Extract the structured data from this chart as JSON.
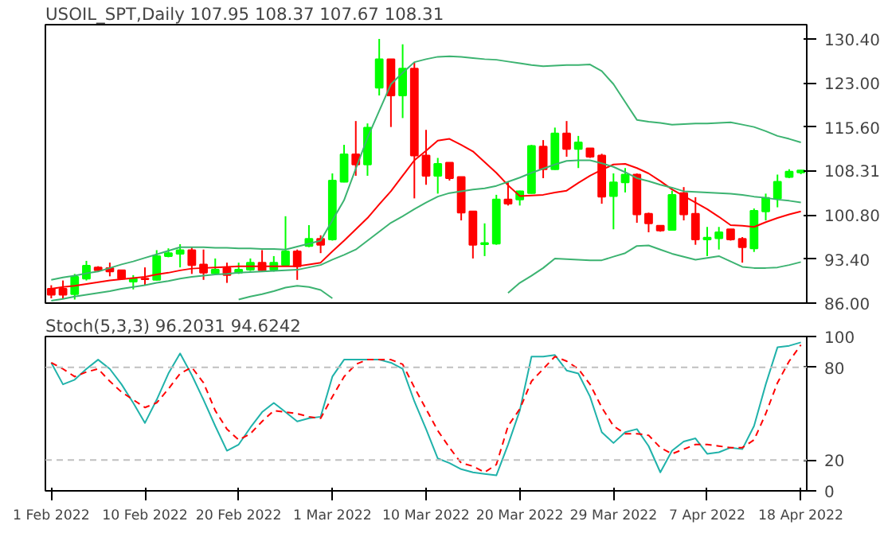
{
  "chart_data": [
    {
      "type": "candlestick",
      "title": "USOIL_SPT,Daily 107.95 108.37 107.67 108.31",
      "categories": [
        null,
        null,
        null,
        null,
        null,
        null,
        null,
        null,
        null,
        null,
        null,
        null,
        null,
        null,
        null,
        null,
        null,
        null,
        null,
        null,
        null,
        null,
        null,
        null,
        null,
        null,
        null,
        null,
        null,
        null,
        null,
        null,
        null,
        null,
        null,
        null,
        null,
        null,
        null,
        null,
        null,
        null,
        null,
        null,
        null,
        null,
        null,
        null,
        null,
        null,
        null,
        null,
        null,
        null,
        null,
        null,
        null,
        null,
        null,
        null,
        null,
        null,
        null,
        null,
        null
      ],
      "ohlc": [
        [
          88.4,
          89.0,
          86.8,
          87.4
        ],
        [
          88.4,
          89.8,
          86.8,
          87.4
        ],
        [
          87.5,
          90.9,
          86.6,
          90.4
        ],
        [
          90.1,
          93.1,
          89.8,
          92.3
        ],
        [
          92.0,
          92.2,
          91.3,
          91.5
        ],
        [
          91.9,
          92.8,
          90.5,
          91.3
        ],
        [
          91.5,
          91.6,
          89.9,
          90.1
        ],
        [
          89.6,
          90.7,
          88.3,
          90.1
        ],
        [
          90.1,
          92.0,
          89.0,
          90.0
        ],
        [
          89.9,
          94.9,
          89.8,
          93.9
        ],
        [
          93.9,
          95.2,
          93.7,
          94.4
        ],
        [
          94.3,
          95.9,
          92.0,
          94.9
        ],
        [
          94.9,
          95.4,
          90.9,
          92.4
        ],
        [
          92.5,
          95.0,
          89.9,
          91.1
        ],
        [
          91.0,
          93.5,
          90.7,
          91.6
        ],
        [
          91.9,
          92.8,
          89.4,
          90.7
        ],
        [
          91.1,
          92.8,
          90.9,
          91.6
        ],
        [
          91.6,
          93.5,
          91.4,
          92.8
        ],
        [
          92.8,
          94.9,
          91.3,
          91.5
        ],
        [
          91.6,
          93.9,
          91.3,
          92.8
        ],
        [
          92.4,
          100.6,
          92.2,
          94.7
        ],
        [
          94.7,
          95.0,
          89.9,
          92.2
        ],
        [
          95.6,
          99.1,
          95.4,
          96.8
        ],
        [
          96.8,
          97.4,
          94.4,
          95.8
        ],
        [
          96.7,
          107.8,
          96.5,
          106.6
        ],
        [
          106.4,
          112.6,
          106.3,
          111.0
        ],
        [
          111.0,
          116.6,
          107.4,
          109.3
        ],
        [
          109.3,
          116.2,
          107.4,
          115.5
        ],
        [
          122.2,
          130.4,
          120.9,
          127.0
        ],
        [
          127.0,
          127.0,
          115.6,
          120.9
        ],
        [
          120.9,
          129.5,
          117.1,
          125.4
        ],
        [
          125.4,
          126.4,
          103.6,
          110.8
        ],
        [
          110.8,
          115.1,
          105.9,
          107.4
        ],
        [
          107.4,
          110.4,
          104.4,
          109.4
        ],
        [
          109.6,
          109.6,
          106.6,
          107.0
        ],
        [
          107.2,
          107.2,
          99.9,
          101.2
        ],
        [
          101.4,
          101.4,
          93.5,
          95.8
        ],
        [
          95.9,
          99.4,
          93.9,
          96.1
        ],
        [
          96.0,
          104.2,
          95.8,
          103.4
        ],
        [
          103.4,
          106.3,
          102.4,
          102.7
        ],
        [
          103.4,
          104.9,
          102.4,
          104.8
        ],
        [
          104.5,
          112.6,
          104.4,
          112.4
        ],
        [
          112.3,
          113.4,
          107.0,
          108.5
        ],
        [
          108.5,
          115.5,
          108.4,
          114.5
        ],
        [
          114.5,
          116.6,
          110.6,
          111.9
        ],
        [
          111.9,
          114.1,
          108.7,
          113.0
        ],
        [
          112.0,
          112.0,
          110.4,
          110.6
        ],
        [
          110.8,
          111.1,
          102.7,
          103.9
        ],
        [
          104.0,
          107.8,
          98.4,
          106.3
        ],
        [
          106.3,
          108.7,
          104.6,
          107.6
        ],
        [
          107.6,
          107.8,
          99.5,
          100.9
        ],
        [
          101.0,
          101.2,
          97.9,
          99.4
        ],
        [
          99.0,
          99.1,
          98.0,
          98.2
        ],
        [
          98.3,
          104.9,
          98.2,
          104.2
        ],
        [
          104.5,
          105.5,
          99.9,
          100.9
        ],
        [
          101.0,
          103.8,
          95.8,
          96.7
        ],
        [
          96.7,
          98.8,
          93.9,
          97.0
        ],
        [
          96.9,
          98.8,
          95.0,
          97.9
        ],
        [
          98.4,
          98.4,
          96.5,
          96.7
        ],
        [
          96.8,
          97.1,
          92.8,
          95.4
        ],
        [
          95.2,
          101.9,
          94.6,
          101.5
        ],
        [
          101.4,
          104.4,
          99.9,
          103.7
        ],
        [
          103.6,
          107.6,
          102.1,
          106.4
        ],
        [
          107.2,
          108.5,
          107.0,
          108.1
        ],
        [
          107.95,
          108.37,
          107.67,
          108.31
        ]
      ],
      "colors": [
        "#ff0000",
        "#ff0000",
        "#00ff00",
        "#00ff00",
        "#ff0000",
        "#ff0000",
        "#ff0000",
        "#00ff00",
        "#ff0000",
        "#00ff00",
        "#00ff00",
        "#00ff00",
        "#ff0000",
        "#ff0000",
        "#00ff00",
        "#ff0000",
        "#00ff00",
        "#00ff00",
        "#ff0000",
        "#00ff00",
        "#00ff00",
        "#ff0000",
        "#00ff00",
        "#ff0000",
        "#00ff00",
        "#00ff00",
        "#ff0000",
        "#00ff00",
        "#00ff00",
        "#ff0000",
        "#00ff00",
        "#ff0000",
        "#ff0000",
        "#00ff00",
        "#ff0000",
        "#ff0000",
        "#ff0000",
        "#00ff00",
        "#00ff00",
        "#ff0000",
        "#00ff00",
        "#00ff00",
        "#ff0000",
        "#00ff00",
        "#ff0000",
        "#00ff00",
        "#ff0000",
        "#ff0000",
        "#00ff00",
        "#00ff00",
        "#ff0000",
        "#ff0000",
        "#ff0000",
        "#00ff00",
        "#ff0000",
        "#ff0000",
        "#00ff00",
        "#00ff00",
        "#ff0000",
        "#ff0000",
        "#00ff00",
        "#00ff00",
        "#00ff00",
        "#00ff00",
        "#00ff00"
      ],
      "series": [
        {
          "type": "line",
          "color": "#3cb371",
          "values": [
            89.9,
            90.3,
            90.6,
            91.0,
            91.3,
            91.9,
            92.5,
            93.0,
            93.6,
            94.2,
            94.8,
            95.4,
            95.4,
            95.4,
            95.3,
            95.3,
            95.2,
            95.2,
            95.1,
            95.1,
            95.0,
            95.5,
            96.0,
            96.5,
            99.9,
            103.3,
            108.6,
            113.8,
            118.3,
            122.8,
            124.7,
            126.5,
            127.0,
            127.4,
            127.5,
            127.4,
            127.2,
            127.0,
            126.9,
            126.6,
            126.3,
            126.0,
            125.8,
            125.9,
            126.0,
            126.0,
            126.1,
            125.0,
            122.8,
            119.8,
            116.8,
            116.5,
            116.3,
            116.0,
            116.1,
            116.2,
            116.2,
            116.3,
            116.4,
            116.0,
            115.6,
            114.9,
            114.1,
            113.6,
            113.0
          ]
        },
        {
          "type": "line",
          "color": "#ff0000",
          "values": [
            88.4,
            88.7,
            88.9,
            89.2,
            89.5,
            89.8,
            90.0,
            90.2,
            90.4,
            90.8,
            91.1,
            91.5,
            91.8,
            91.9,
            92.0,
            92.1,
            92.2,
            92.2,
            92.2,
            92.2,
            92.2,
            92.2,
            92.5,
            92.8,
            94.7,
            96.5,
            98.4,
            100.3,
            102.6,
            104.8,
            107.4,
            110.0,
            111.6,
            113.3,
            113.6,
            112.6,
            111.5,
            109.7,
            107.9,
            105.8,
            104.0,
            104.1,
            104.2,
            104.6,
            104.9,
            106.2,
            107.4,
            108.4,
            109.3,
            109.4,
            108.7,
            107.8,
            106.5,
            105.1,
            104.0,
            102.9,
            101.8,
            100.5,
            99.1,
            99.0,
            98.8,
            99.6,
            100.3,
            100.9,
            101.4
          ]
        },
        {
          "type": "line",
          "color": "#3cb371",
          "values": [
            86.4,
            86.7,
            87.1,
            87.4,
            87.7,
            88.0,
            88.4,
            88.7,
            89.0,
            89.4,
            89.7,
            90.1,
            90.4,
            90.6,
            90.8,
            90.9,
            91.1,
            91.2,
            91.3,
            91.4,
            91.5,
            91.6,
            92.0,
            92.4,
            93.3,
            94.1,
            95.0,
            96.5,
            98.0,
            99.5,
            100.6,
            101.8,
            102.9,
            103.9,
            104.5,
            104.8,
            105.1,
            105.3,
            105.7,
            106.4,
            107.1,
            107.9,
            108.6,
            109.3,
            109.9,
            110.0,
            110.0,
            109.5,
            108.9,
            108.0,
            107.0,
            106.5,
            105.9,
            105.4,
            104.8,
            104.7,
            104.6,
            104.5,
            104.4,
            104.2,
            103.9,
            103.7,
            103.4,
            103.2,
            102.9
          ]
        },
        {
          "type": "line",
          "color": "#3cb371",
          "values": [
            null,
            null,
            null,
            null,
            null,
            null,
            null,
            null,
            null,
            null,
            null,
            null,
            null,
            null,
            null,
            null,
            86.6,
            87.1,
            87.5,
            88.0,
            88.6,
            88.9,
            88.7,
            88.2,
            86.8,
            null,
            null,
            null,
            null,
            null,
            null,
            null,
            null,
            null,
            null,
            null,
            null,
            null,
            null,
            87.7,
            89.4,
            90.6,
            91.9,
            93.5,
            93.4,
            93.3,
            93.2,
            93.2,
            93.8,
            94.4,
            95.6,
            95.7,
            95.0,
            94.3,
            93.8,
            93.3,
            93.6,
            93.9,
            93.0,
            92.1,
            91.9,
            91.9,
            92.0,
            92.4,
            92.9
          ]
        }
      ],
      "ylim": [
        86,
        132.8
      ],
      "yticks": [
        {
          "value": 86,
          "label": "86.00"
        },
        {
          "value": 93.4,
          "label": "93.40"
        },
        {
          "value": 100.8,
          "label": "100.80"
        },
        {
          "value": 108.31,
          "label": "108.31"
        },
        {
          "value": 115.6,
          "label": "115.60"
        },
        {
          "value": 123,
          "label": "123.00"
        },
        {
          "value": 130.4,
          "label": "130.40"
        }
      ],
      "tick_labels": "y"
    },
    {
      "type": "line",
      "title": "Stoch(5,3,3) 96.2031 94.6242",
      "categories": [
        "1 Feb 2022",
        null,
        null,
        null,
        null,
        null,
        null,
        null,
        "10 Feb 2022",
        null,
        null,
        null,
        null,
        null,
        null,
        null,
        "20 Feb 2022",
        null,
        null,
        null,
        null,
        null,
        null,
        null,
        "1 Mar 2022",
        null,
        null,
        null,
        null,
        null,
        null,
        null,
        "10 Mar 2022",
        null,
        null,
        null,
        null,
        null,
        null,
        null,
        "20 Mar 2022",
        null,
        null,
        null,
        null,
        null,
        null,
        null,
        "29 Mar 2022",
        null,
        null,
        null,
        null,
        null,
        null,
        null,
        "7 Apr 2022",
        null,
        null,
        null,
        null,
        null,
        null,
        null,
        "18 Apr 2022"
      ],
      "series": [
        {
          "color": "#20b2aa",
          "line_style": "solid",
          "values": [
            83,
            69,
            72,
            79,
            85,
            79,
            69,
            57,
            44,
            59,
            76,
            89,
            75,
            59,
            42,
            26,
            30,
            41,
            51,
            57,
            51,
            45,
            47,
            48,
            74,
            85,
            85,
            85,
            85,
            83,
            79,
            58,
            40,
            21,
            18,
            14,
            12,
            11,
            10,
            30,
            52,
            87,
            87,
            88,
            78,
            76,
            61,
            38,
            31,
            38,
            40,
            29,
            12,
            26,
            32,
            34,
            24,
            25,
            28,
            27,
            42,
            69,
            93,
            94,
            96.2
          ]
        },
        {
          "color": "#ff0000",
          "line_style": "dashed",
          "values": [
            83,
            79,
            74,
            77,
            79,
            71,
            64,
            59,
            54,
            57,
            66,
            76,
            80,
            70,
            52,
            40,
            33,
            37,
            45,
            52,
            51,
            50,
            48,
            47,
            61,
            74,
            82,
            85,
            85,
            85,
            82,
            67,
            53,
            39,
            28,
            18,
            16,
            12,
            17,
            42,
            53,
            71,
            79,
            87,
            84,
            79,
            69,
            54,
            42,
            37,
            37,
            36,
            28,
            24,
            27,
            30,
            30,
            29,
            28,
            28,
            33,
            50,
            70,
            84,
            94.6
          ]
        }
      ],
      "ylim": [
        0,
        100
      ],
      "yticks": [
        0,
        20,
        80,
        100
      ],
      "ref_lines": [
        {
          "axis": "y",
          "value": 80,
          "color": "#c0c0c0",
          "line_style": "dashed"
        },
        {
          "axis": "y",
          "value": 20,
          "color": "#c0c0c0",
          "line_style": "dashed"
        }
      ]
    }
  ]
}
